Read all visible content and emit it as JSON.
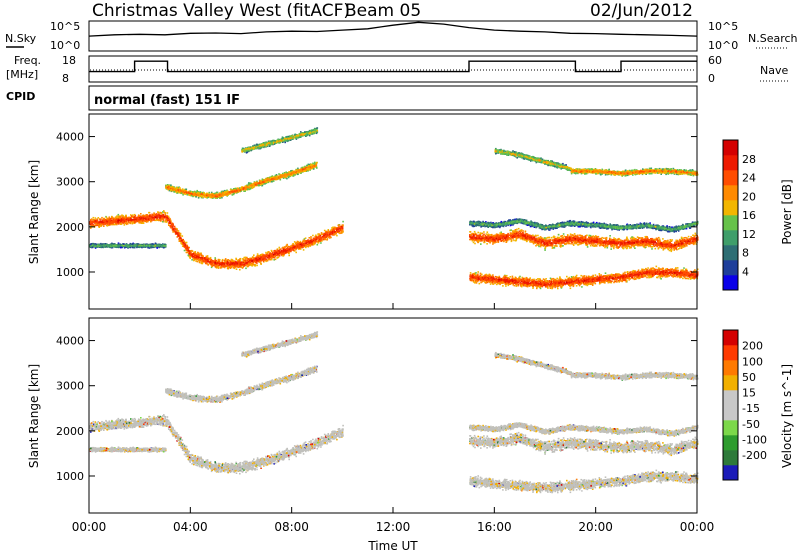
{
  "header": {
    "radar_name": "Christmas Valley West (fitACF)",
    "beam": "Beam 05",
    "date": "02/Jun/2012"
  },
  "noise_panel": {
    "left_label": "N.Sky",
    "left_ticks": [
      "10^5",
      "10^0"
    ],
    "right_ticks": [
      "10^5",
      "10^0"
    ],
    "right_label": "N.Search"
  },
  "freq_panel": {
    "left_label_1": "Freq.",
    "left_label_2": "[MHz]",
    "left_ticks": [
      "18",
      "8"
    ],
    "right_ticks": [
      "60",
      "0"
    ],
    "right_label": "Nave"
  },
  "cpid_panel": {
    "label": "CPID",
    "mode": "normal (fast) 151 IF"
  },
  "colors": {
    "power_scale": [
      "#0a00e8",
      "#1e3e9a",
      "#2e6e74",
      "#3f9e6a",
      "#66c24a",
      "#f2b600",
      "#ff8a00",
      "#ff4d00",
      "#ee1a00",
      "#d40000"
    ],
    "velocity_scale": [
      "#1b1bb8",
      "#2e7a3a",
      "#2e9c2e",
      "#7cd84a",
      "#c8c8c8",
      "#c8c8c8",
      "#f2b000",
      "#ff7a00",
      "#ff3a00",
      "#d40000"
    ],
    "velocity_ground": "#c0c0bc"
  },
  "chart_data": [
    {
      "type": "line",
      "panel": "noise",
      "xlim": [
        0,
        24
      ],
      "y_scale": "log",
      "ylim": [
        1,
        100000
      ],
      "series": [
        {
          "x": [
            0,
            1,
            2,
            3,
            4,
            5,
            6,
            7,
            8,
            9,
            10,
            11,
            12,
            13,
            14,
            15,
            16,
            17,
            18,
            19,
            20,
            21,
            22,
            23,
            24
          ],
          "values": [
            300,
            500,
            600,
            500,
            900,
            1000,
            800,
            1500,
            2000,
            1800,
            3000,
            5000,
            20000,
            60000,
            30000,
            8000,
            3000,
            2000,
            1500,
            900,
            800,
            600,
            500,
            400,
            300
          ]
        }
      ]
    },
    {
      "type": "line",
      "panel": "frequency",
      "xlim": [
        0,
        24
      ],
      "ylim": [
        8,
        18
      ],
      "series": [
        {
          "x": [
            0,
            1.8,
            1.8,
            3.1,
            3.1,
            15.0,
            15.0,
            19.2,
            19.2,
            21.0,
            21.0,
            24
          ],
          "values": [
            12,
            12,
            16,
            16,
            12,
            12,
            16,
            16,
            12,
            12,
            16,
            16
          ]
        }
      ]
    },
    {
      "type": "heatmap",
      "title": "Power",
      "ylabel": "Slant Range [km]",
      "ylim": [
        180,
        4500
      ],
      "y_ticks": [
        "1000",
        "2000",
        "3000",
        "4000"
      ],
      "colorbar_label": "Power [dB]",
      "colorbar_ticks": [
        "4",
        "8",
        "12",
        "16",
        "20",
        "24",
        "28"
      ],
      "bands": [
        {
          "x": [
            0,
            1,
            2,
            3,
            4,
            5,
            6,
            7,
            8,
            9,
            10
          ],
          "center_km": [
            2100,
            2150,
            2200,
            2250,
            1400,
            1200,
            1200,
            1350,
            1550,
            1750,
            2000
          ],
          "width_km": 300,
          "level": 24
        },
        {
          "x": [
            0,
            1,
            2,
            3
          ],
          "center_km": [
            1600,
            1600,
            1600,
            1600
          ],
          "width_km": 120,
          "level": 12
        },
        {
          "x": [
            3,
            4,
            5,
            6,
            7,
            8,
            9
          ],
          "center_km": [
            2900,
            2750,
            2700,
            2850,
            3050,
            3200,
            3400
          ],
          "width_km": 180,
          "level": 20
        },
        {
          "x": [
            6,
            7,
            8,
            9
          ],
          "center_km": [
            3700,
            3850,
            4000,
            4150
          ],
          "width_km": 150,
          "level": 16
        },
        {
          "x": [
            15,
            16,
            17,
            18,
            19,
            20,
            21,
            22,
            23,
            24
          ],
          "center_km": [
            1800,
            1750,
            1850,
            1650,
            1750,
            1700,
            1650,
            1700,
            1600,
            1750
          ],
          "width_km": 320,
          "level": 24
        },
        {
          "x": [
            15,
            16,
            17,
            18,
            19,
            20,
            21,
            22,
            23,
            24
          ],
          "center_km": [
            2100,
            2050,
            2150,
            2000,
            2100,
            2050,
            2000,
            2050,
            1950,
            2100
          ],
          "width_km": 150,
          "level": 12
        },
        {
          "x": [
            15,
            16,
            17,
            18,
            19,
            20,
            21,
            22,
            23,
            24
          ],
          "center_km": [
            900,
            850,
            800,
            750,
            800,
            850,
            900,
            1000,
            1000,
            950
          ],
          "width_km": 300,
          "level": 24
        },
        {
          "x": [
            19,
            20,
            21,
            22,
            23,
            24
          ],
          "center_km": [
            3250,
            3250,
            3200,
            3250,
            3250,
            3200
          ],
          "width_km": 150,
          "level": 20
        },
        {
          "x": [
            16,
            17,
            18,
            19
          ],
          "center_km": [
            3700,
            3600,
            3450,
            3300
          ],
          "width_km": 150,
          "level": 16
        }
      ]
    },
    {
      "type": "heatmap",
      "title": "Velocity",
      "ylabel": "Slant Range [km]",
      "xlabel": "Time UT",
      "x_ticks": [
        "00:00",
        "04:00",
        "08:00",
        "12:00",
        "16:00",
        "20:00",
        "00:00"
      ],
      "ylim": [
        180,
        4500
      ],
      "y_ticks": [
        "1000",
        "2000",
        "3000",
        "4000"
      ],
      "colorbar_label": "Velocity [m s^-1]",
      "colorbar_ticks": [
        "200",
        "100",
        "50",
        "15",
        "-15",
        "-50",
        "-100",
        "-200"
      ]
    }
  ]
}
